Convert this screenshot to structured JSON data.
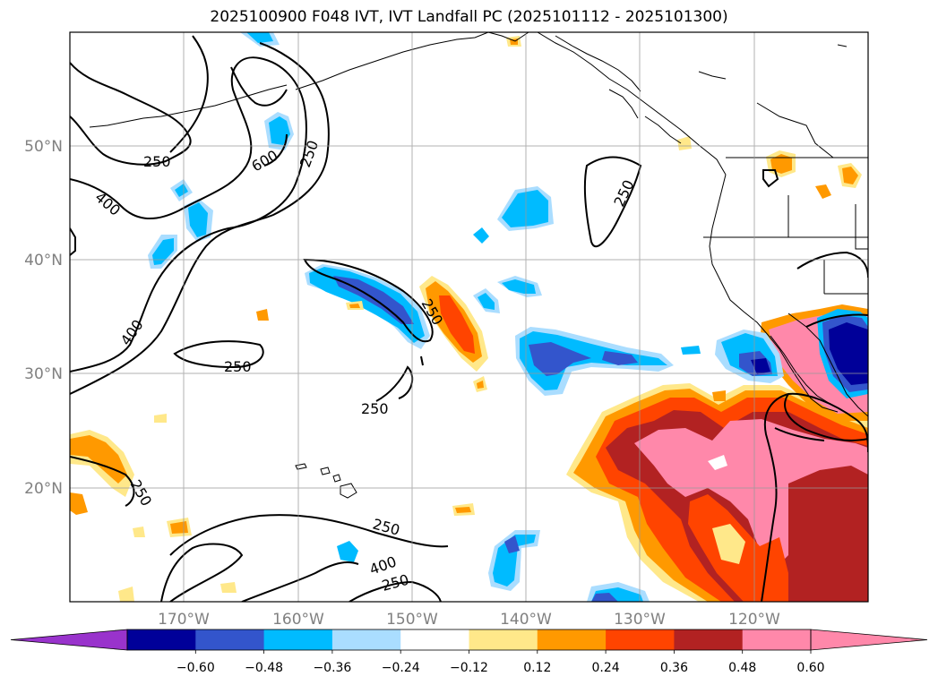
{
  "title": "2025100900 F048 IVT, IVT Landfall PC (2025101112 - 2025101300)",
  "map": {
    "lat_labels": [
      "50°N",
      "40°N",
      "30°N",
      "20°N"
    ],
    "lon_labels": [
      "170°W",
      "160°W",
      "150°W",
      "140°W",
      "130°W",
      "120°W"
    ],
    "contour_labels": [
      "250",
      "600",
      "250",
      "400",
      "250",
      "400",
      "250",
      "250",
      "250",
      "250",
      "250",
      "400",
      "250"
    ]
  },
  "colorbar": {
    "tick_labels": [
      "−0.60",
      "−0.48",
      "−0.36",
      "−0.24",
      "−0.12",
      "0.12",
      "0.24",
      "0.36",
      "0.48",
      "0.60"
    ],
    "colors": [
      "#9933cc",
      "#000099",
      "#3355cc",
      "#00bbff",
      "#aaddff",
      "#ffffff",
      "#ffe88a",
      "#ff9900",
      "#ff4400",
      "#b22222",
      "#ff88aa",
      "#ff88aa"
    ]
  }
}
